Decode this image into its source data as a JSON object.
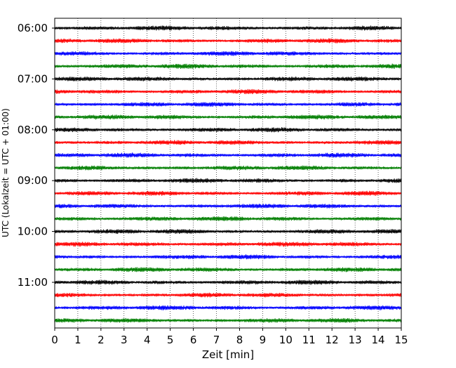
{
  "chart_data": {
    "type": "line",
    "title": "",
    "xlabel": "Zeit  [min]",
    "ylabel": "UTC (Lokalzeit = UTC + 01:00)",
    "x_range": [
      0,
      15
    ],
    "x_ticks": [
      0,
      1,
      2,
      3,
      4,
      5,
      6,
      7,
      8,
      9,
      10,
      11,
      12,
      13,
      14,
      15
    ],
    "y_ticks": [
      {
        "label": "06:00",
        "row": 0
      },
      {
        "label": "07:00",
        "row": 4
      },
      {
        "label": "08:00",
        "row": 8
      },
      {
        "label": "09:00",
        "row": 12
      },
      {
        "label": "10:00",
        "row": 16
      },
      {
        "label": "11:00",
        "row": 20
      }
    ],
    "rows_per_hour": 4,
    "total_rows": 24,
    "row_minutes": 15,
    "trace_colors": [
      "#000000",
      "#ff0000",
      "#0000ff",
      "#007f00"
    ],
    "grid": {
      "vertical": true,
      "horizontal": false,
      "style": "dotted"
    },
    "legend": "none"
  }
}
